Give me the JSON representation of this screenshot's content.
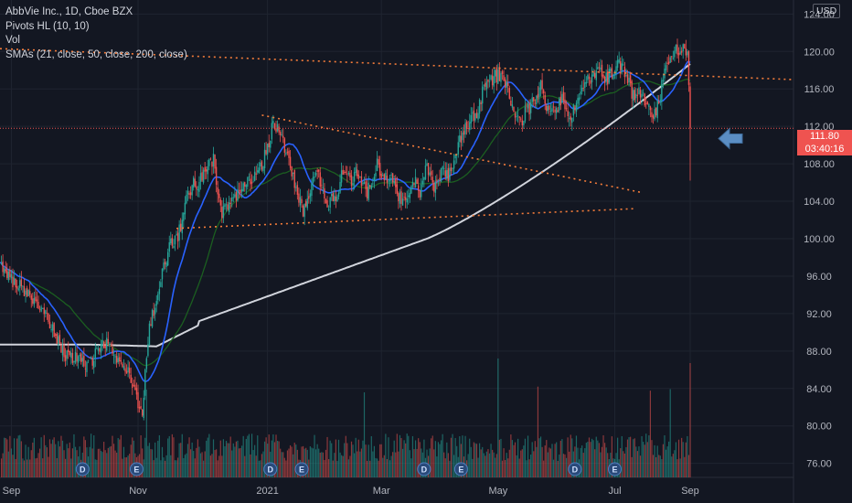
{
  "legend": {
    "symbol": "AbbVie Inc., 1D, Cboe BZX",
    "indicator1": "Pivots HL (10, 10)",
    "indicator2": "Vol",
    "indicator3": "SMAs (21, close, 50, close, 200, close)"
  },
  "currency": "USD",
  "last_price": {
    "value": "111.80",
    "countdown": "03:40:16"
  },
  "colors": {
    "background": "#131722",
    "grid": "#1f2430",
    "up": "#26a69a",
    "down": "#ef5350",
    "sma21": "#2962ff",
    "sma50": "#1b5e20",
    "sma200": "#d1d4dc",
    "trendline": "#f57c3a",
    "arrow": "#5b8ec4",
    "axis_text": "#b2b5be"
  },
  "chart_data": {
    "type": "candlestick",
    "ylim": [
      74.5,
      125.5
    ],
    "y_ticks": [
      "124.00",
      "120.00",
      "116.00",
      "112.00",
      "108.00",
      "104.00",
      "100.00",
      "96.00",
      "92.00",
      "88.00",
      "84.00",
      "80.00",
      "76.00"
    ],
    "x_ticks": [
      "Sep",
      "Nov",
      "2021",
      "Mar",
      "May",
      "Jul",
      "Sep"
    ],
    "event_markers": [
      "D",
      "E",
      "D",
      "E",
      "D",
      "E",
      "D",
      "E"
    ],
    "close_path": [
      {
        "d": 0,
        "c": 97.2
      },
      {
        "d": 8,
        "c": 95.6
      },
      {
        "d": 15,
        "c": 94.8
      },
      {
        "d": 25,
        "c": 93.2
      },
      {
        "d": 35,
        "c": 91.0
      },
      {
        "d": 45,
        "c": 87.8
      },
      {
        "d": 55,
        "c": 87.0
      },
      {
        "d": 62,
        "c": 86.4
      },
      {
        "d": 70,
        "c": 88.5
      },
      {
        "d": 75,
        "c": 89.0
      },
      {
        "d": 83,
        "c": 86.6
      },
      {
        "d": 90,
        "c": 86.0
      },
      {
        "d": 96,
        "c": 83.0
      },
      {
        "d": 100,
        "c": 81.0
      },
      {
        "d": 103,
        "c": 87.8
      },
      {
        "d": 106,
        "c": 91.5
      },
      {
        "d": 109,
        "c": 92.8
      },
      {
        "d": 112,
        "c": 95.0
      },
      {
        "d": 116,
        "c": 97.5
      },
      {
        "d": 120,
        "c": 99.5
      },
      {
        "d": 125,
        "c": 100.2
      },
      {
        "d": 130,
        "c": 103.5
      },
      {
        "d": 135,
        "c": 105.8
      },
      {
        "d": 140,
        "c": 106.0
      },
      {
        "d": 145,
        "c": 107.6
      },
      {
        "d": 150,
        "c": 108.5
      },
      {
        "d": 152,
        "c": 105.5
      },
      {
        "d": 155,
        "c": 102.8
      },
      {
        "d": 160,
        "c": 103.6
      },
      {
        "d": 165,
        "c": 104.3
      },
      {
        "d": 172,
        "c": 105.5
      },
      {
        "d": 178,
        "c": 106.7
      },
      {
        "d": 183,
        "c": 107.5
      },
      {
        "d": 188,
        "c": 109.8
      },
      {
        "d": 192,
        "c": 112.5
      },
      {
        "d": 196,
        "c": 111.5
      },
      {
        "d": 200,
        "c": 109.8
      },
      {
        "d": 205,
        "c": 106.8
      },
      {
        "d": 210,
        "c": 104.2
      },
      {
        "d": 213,
        "c": 102.8
      },
      {
        "d": 218,
        "c": 105.5
      },
      {
        "d": 222,
        "c": 107.8
      },
      {
        "d": 226,
        "c": 105.6
      },
      {
        "d": 230,
        "c": 103.8
      },
      {
        "d": 236,
        "c": 104.5
      },
      {
        "d": 242,
        "c": 107.8
      },
      {
        "d": 246,
        "c": 106.0
      },
      {
        "d": 250,
        "c": 107.0
      },
      {
        "d": 258,
        "c": 105.0
      },
      {
        "d": 265,
        "c": 107.8
      },
      {
        "d": 270,
        "c": 106.5
      },
      {
        "d": 275,
        "c": 106.8
      },
      {
        "d": 280,
        "c": 104.5
      },
      {
        "d": 284,
        "c": 103.8
      },
      {
        "d": 290,
        "c": 106.5
      },
      {
        "d": 295,
        "c": 104.8
      },
      {
        "d": 300,
        "c": 107.6
      },
      {
        "d": 305,
        "c": 105.0
      },
      {
        "d": 310,
        "c": 107.0
      },
      {
        "d": 315,
        "c": 106.5
      },
      {
        "d": 320,
        "c": 109.0
      },
      {
        "d": 325,
        "c": 111.5
      },
      {
        "d": 330,
        "c": 112.5
      },
      {
        "d": 335,
        "c": 113.5
      },
      {
        "d": 340,
        "c": 116.0
      },
      {
        "d": 345,
        "c": 117.0
      },
      {
        "d": 350,
        "c": 117.5
      },
      {
        "d": 355,
        "c": 116.5
      },
      {
        "d": 358,
        "c": 115.5
      },
      {
        "d": 362,
        "c": 112.5
      },
      {
        "d": 365,
        "c": 112.3
      },
      {
        "d": 370,
        "c": 113.8
      },
      {
        "d": 375,
        "c": 114.5
      },
      {
        "d": 380,
        "c": 116.2
      },
      {
        "d": 385,
        "c": 114.0
      },
      {
        "d": 390,
        "c": 113.5
      },
      {
        "d": 395,
        "c": 115.3
      },
      {
        "d": 400,
        "c": 112.8
      },
      {
        "d": 405,
        "c": 114.5
      },
      {
        "d": 410,
        "c": 116.0
      },
      {
        "d": 415,
        "c": 117.2
      },
      {
        "d": 420,
        "c": 118.0
      },
      {
        "d": 425,
        "c": 117.0
      },
      {
        "d": 430,
        "c": 117.6
      },
      {
        "d": 435,
        "c": 118.5
      },
      {
        "d": 440,
        "c": 117.5
      },
      {
        "d": 443,
        "c": 116.0
      },
      {
        "d": 446,
        "c": 115.0
      },
      {
        "d": 450,
        "c": 115.5
      },
      {
        "d": 455,
        "c": 114.0
      },
      {
        "d": 460,
        "c": 113.2
      },
      {
        "d": 463,
        "c": 115.0
      },
      {
        "d": 467,
        "c": 117.5
      },
      {
        "d": 472,
        "c": 119.5
      },
      {
        "d": 476,
        "c": 120.3
      },
      {
        "d": 480,
        "c": 120.5
      },
      {
        "d": 483,
        "c": 120.0
      },
      {
        "d": 485,
        "c": 111.8
      }
    ],
    "volume_avg_label": "Vol"
  }
}
